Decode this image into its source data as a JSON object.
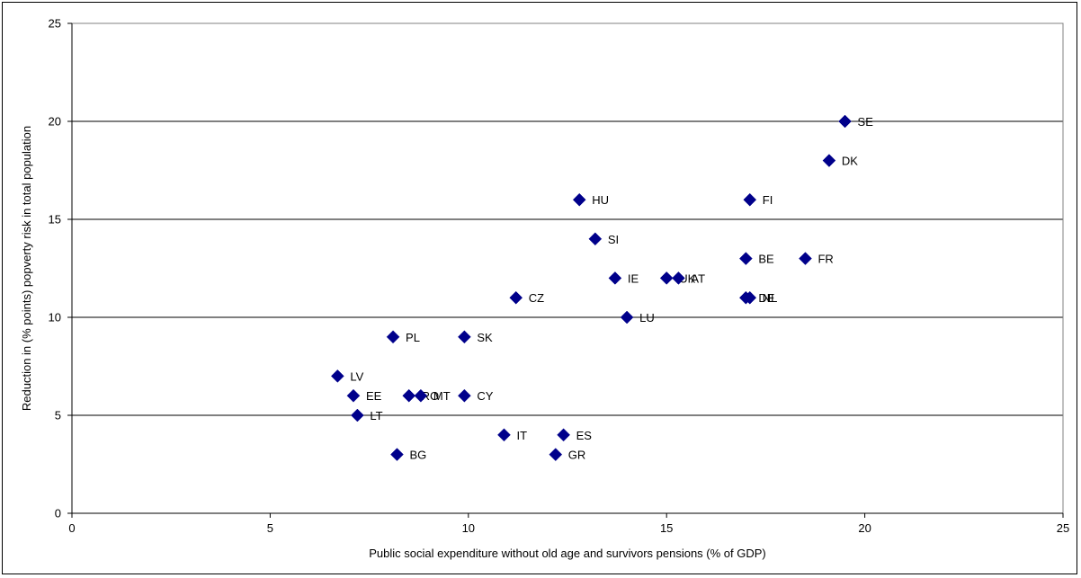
{
  "chart_data": {
    "type": "scatter",
    "title": "",
    "xlabel": "Public social expenditure without old age and survivors pensions (% of GDP)",
    "ylabel": "Reduction in (% points) popverty risk in total population",
    "xlim": [
      0,
      25
    ],
    "ylim": [
      0,
      25
    ],
    "x_ticks": [
      0,
      5,
      10,
      15,
      20,
      25
    ],
    "y_ticks": [
      0,
      5,
      10,
      15,
      20,
      25
    ],
    "horizontal_grid": true,
    "legend": "none",
    "marker": "diamond",
    "marker_color": "#00008B",
    "points": [
      {
        "label": "SE",
        "x": 19.5,
        "y": 20
      },
      {
        "label": "DK",
        "x": 19.1,
        "y": 18
      },
      {
        "label": "HU",
        "x": 12.8,
        "y": 16
      },
      {
        "label": "FI",
        "x": 17.1,
        "y": 16
      },
      {
        "label": "SI",
        "x": 13.2,
        "y": 14
      },
      {
        "label": "BE",
        "x": 17.0,
        "y": 13
      },
      {
        "label": "FR",
        "x": 18.5,
        "y": 13
      },
      {
        "label": "IE",
        "x": 13.7,
        "y": 12
      },
      {
        "label": "UK",
        "x": 15.0,
        "y": 12
      },
      {
        "label": "AT",
        "x": 15.3,
        "y": 12
      },
      {
        "label": "CZ",
        "x": 11.2,
        "y": 11
      },
      {
        "label": "DE",
        "x": 17.0,
        "y": 11
      },
      {
        "label": "NL",
        "x": 17.1,
        "y": 11
      },
      {
        "label": "LU",
        "x": 14.0,
        "y": 10
      },
      {
        "label": "PL",
        "x": 8.1,
        "y": 9
      },
      {
        "label": "SK",
        "x": 9.9,
        "y": 9
      },
      {
        "label": "LV",
        "x": 6.7,
        "y": 7
      },
      {
        "label": "EE",
        "x": 7.1,
        "y": 6
      },
      {
        "label": "RO",
        "x": 8.5,
        "y": 6
      },
      {
        "label": "MT",
        "x": 8.8,
        "y": 6
      },
      {
        "label": "CY",
        "x": 9.9,
        "y": 6
      },
      {
        "label": "LT",
        "x": 7.2,
        "y": 5
      },
      {
        "label": "IT",
        "x": 10.9,
        "y": 4
      },
      {
        "label": "ES",
        "x": 12.4,
        "y": 4
      },
      {
        "label": "BG",
        "x": 8.2,
        "y": 3
      },
      {
        "label": "GR",
        "x": 12.2,
        "y": 3
      }
    ]
  }
}
